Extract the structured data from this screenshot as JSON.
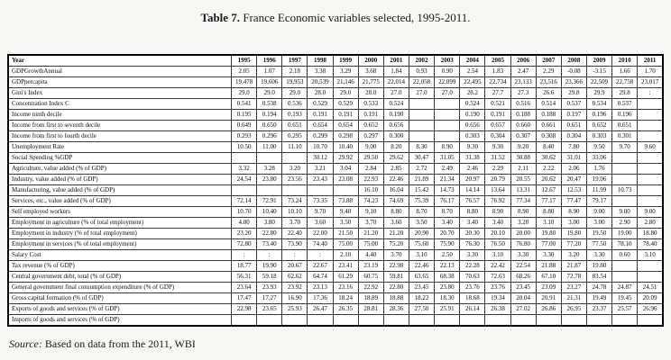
{
  "title": {
    "prefix": "Table 7.",
    "text": " France Economic variables selected, 1995-2011."
  },
  "source": {
    "label": "Source:",
    "text": " Based on data from the 2011, WBI"
  },
  "chart_data": {
    "type": "table",
    "title": "Table 7. France Economic variables selected, 1995-2011."
  },
  "table": {
    "header": [
      "Year",
      "1995",
      "1996",
      "1997",
      "1998",
      "1999",
      "2000",
      "2001",
      "2002",
      "2003",
      "2004",
      "2005",
      "2006",
      "2007",
      "2008",
      "2009",
      "2010",
      "2011"
    ],
    "rows": [
      {
        "label": "GDPGrowthAnnual",
        "values": [
          "2.05",
          "1.07",
          "2.18",
          "3.38",
          "3.29",
          "3.68",
          "1.84",
          "0.93",
          "0.90",
          "2.54",
          "1.83",
          "2.47",
          "2.29",
          "-0.08",
          "-3.15",
          "1.66",
          "1.70"
        ]
      },
      {
        "label": "GDPpercapita",
        "values": [
          "19,478",
          "19,606",
          "19,953",
          "20,539",
          "21,146",
          "21,775",
          "22,014",
          "22,058",
          "22,099",
          "22,495",
          "22,734",
          "23,133",
          "23,516",
          "23,366",
          "22,509",
          "22,758",
          "23,017"
        ]
      },
      {
        "label": "Gini's Index",
        "values": [
          "29.0",
          "29.0",
          "29.0",
          "28.0",
          "29.0",
          "28.0",
          "27.0",
          "27.0",
          "27.0",
          "28.2",
          "27.7",
          "27.3",
          "26.6",
          "29.8",
          "29.9",
          "29.8",
          ":"
        ]
      },
      {
        "label": "Concentration Index C",
        "values": [
          "0.541",
          "0.538",
          "0.536",
          "0.529",
          "0.529",
          "0.533",
          "0.524",
          "",
          "",
          "0.524",
          "0.521",
          "0.516",
          "0.514",
          "0.537",
          "0.534",
          "0.537",
          ""
        ]
      },
      {
        "label": "Income ninth decile",
        "values": [
          "0.195",
          "0.194",
          "0.193",
          "0.191",
          "0.191",
          "0.191",
          "0.190",
          "",
          "",
          "0.190",
          "0.191",
          "0.188",
          "0.188",
          "0.197",
          "0.196",
          "0.196",
          ""
        ]
      },
      {
        "label": "Income from first to seventh decile",
        "values": [
          "0.649",
          "0.650",
          "0.651",
          "0.654",
          "0.654",
          "0.652",
          "0.656",
          "",
          "",
          "0.656",
          "0.657",
          "0.660",
          "0.661",
          "0.651",
          "0.652",
          "0.651",
          ""
        ]
      },
      {
        "label": "Income from first to fourth decile",
        "values": [
          "0.293",
          "0.296",
          "0.295",
          "0.299",
          "0.298",
          "0.297",
          "0.300",
          "",
          "",
          "0.303",
          "0.304",
          "0.307",
          "0.308",
          "0.304",
          "0.303",
          "0.301",
          ""
        ]
      },
      {
        "label": "Unemployment Rate",
        "values": [
          "10.50",
          "11.00",
          "11.10",
          "10.70",
          "10.40",
          "9.00",
          "8.20",
          "8.30",
          "8.90",
          "9.30",
          "9.30",
          "9.20",
          "8.40",
          "7.80",
          "9.50",
          "9.70",
          "9.60"
        ]
      },
      {
        "label": "Social Spending %GDP",
        "values": [
          "",
          "",
          "",
          "30.12",
          "29.92",
          "29.50",
          "29.62",
          "30.47",
          "31.05",
          "31.38",
          "31.52",
          "30.88",
          "30.62",
          "31.01",
          "33.06",
          "",
          ""
        ]
      },
      {
        "label": "Agriculture, value added (% of GDP)",
        "values": [
          "3.32",
          "3.28",
          "3.20",
          "3.21",
          "3.04",
          "2.84",
          "2.85",
          "2.72",
          "2.49",
          "2.46",
          "2.29",
          "2.11",
          "2.22",
          "2.06",
          "1.76",
          "",
          ""
        ]
      },
      {
        "label": "Industry, value added (% of GDP)",
        "values": [
          "24.54",
          "23.80",
          "23.56",
          "23.43",
          "23.08",
          "22.93",
          "22.46",
          "21.89",
          "21.34",
          "20.97",
          "20.79",
          "20.55",
          "20.62",
          "20.47",
          "19.06",
          "",
          ""
        ]
      },
      {
        "label": "Manufacturing, value added (% of GDP)",
        "values": [
          "",
          "",
          "",
          "",
          "",
          "16.10",
          "16.04",
          "15.42",
          "14.73",
          "14.14",
          "13.64",
          "13.31",
          "12.67",
          "12.53",
          "11.99",
          "10.73",
          ""
        ]
      },
      {
        "label": "Services, etc., value added (% of GDP)",
        "values": [
          "72.14",
          "72.91",
          "73.24",
          "73.35",
          "73.88",
          "74.23",
          "74.69",
          "75.39",
          "76.17",
          "76.57",
          "76.92",
          "77.34",
          "77.17",
          "77.47",
          "79.17",
          "",
          ""
        ]
      },
      {
        "label": "Self employed workers",
        "values": [
          "10.70",
          "10.40",
          "10.10",
          "9.70",
          "9.40",
          "9.10",
          "8.80",
          "8.70",
          "8.70",
          "8.80",
          "8.90",
          "8.90",
          "8.80",
          "8.90",
          "9.00",
          "9.00",
          "9.00"
        ]
      },
      {
        "label": "Employment in agriculture (% of total employment)",
        "values": [
          "4.00",
          "3.80",
          "3.70",
          "3.60",
          "3.50",
          "3.70",
          "3.60",
          "3.50",
          "3.40",
          "3.40",
          "3.40",
          "3.20",
          "3.10",
          "3.00",
          "3.00",
          "2.90",
          "2.80"
        ]
      },
      {
        "label": "Employment in industry (% of total employment)",
        "values": [
          "23.20",
          "22.80",
          "22.40",
          "22.00",
          "21.50",
          "21.20",
          "21.20",
          "20.90",
          "20.70",
          "20.30",
          "20.10",
          "20.00",
          "19.80",
          "19.80",
          "19.50",
          "19.00",
          "18.80"
        ]
      },
      {
        "label": "Employment in services (% of total employment)",
        "values": [
          "72.80",
          "73.40",
          "73.90",
          "74.40",
          "75.00",
          "75.00",
          "75.20",
          "75.60",
          "75.90",
          "76.30",
          "76.50",
          "76.80",
          "77.00",
          "77.20",
          "77.50",
          "78.10",
          "78.40"
        ]
      },
      {
        "label": "Salary Cost",
        "values": [
          ":",
          ":",
          ":",
          ":",
          "2.10",
          "4.40",
          "3.70",
          "3.10",
          "2.50",
          "3.30",
          "3.10",
          "3.30",
          "3.30",
          "3.20",
          "3.30",
          "0.60",
          "3.10"
        ]
      },
      {
        "label": "Tax revenue (% of GDP)",
        "values": [
          "18.77",
          "19.90",
          "20.67",
          "22.67",
          "23.41",
          "23.19",
          "22.98",
          "22.46",
          "22.13",
          "22.28",
          "22.42",
          "22.54",
          "21.88",
          "21.87",
          "19.80",
          "",
          ""
        ]
      },
      {
        "label": "Central government debt, total (% of GDP)",
        "values": [
          "56.31",
          "59.18",
          "62.62",
          "64.74",
          "61.29",
          "60.75",
          "59.81",
          "63.65",
          "68.38",
          "70.63",
          "72.63",
          "68.26",
          "67.10",
          "72.78",
          "83.54",
          "",
          ""
        ]
      },
      {
        "label": "General government final consumption expenditure (% of GDP)",
        "values": [
          "23.64",
          "23.93",
          "23.92",
          "23.13",
          "23.16",
          "22.92",
          "22.80",
          "23.45",
          "23.80",
          "23.76",
          "23.76",
          "23.45",
          "23.09",
          "23.27",
          "24.78",
          "24.87",
          "24.51"
        ]
      },
      {
        "label": "Gross capital formation (% of GDP)",
        "values": [
          "17.47",
          "17.27",
          "16.90",
          "17.36",
          "18.24",
          "18.89",
          "18.88",
          "18.22",
          "18.30",
          "18.68",
          "19.34",
          "20.04",
          "20.91",
          "21.31",
          "19.49",
          "19.45",
          "20.09"
        ]
      },
      {
        "label": "Exports of goods and services (% of GDP)",
        "values": [
          "22.98",
          "23.65",
          "25.93",
          "26.47",
          "26.35",
          "28.81",
          "28.36",
          "27.50",
          "25.91",
          "26.14",
          "26.38",
          "27.02",
          "26.86",
          "26.95",
          "23.37",
          "25.57",
          "26.96"
        ]
      },
      {
        "label": "Imports of goods and services (% of GDP)",
        "values": [
          "",
          "",
          "",
          "",
          "",
          "",
          "",
          "",
          "",
          "",
          "",
          "",
          "",
          "",
          "",
          "",
          ""
        ]
      }
    ]
  }
}
